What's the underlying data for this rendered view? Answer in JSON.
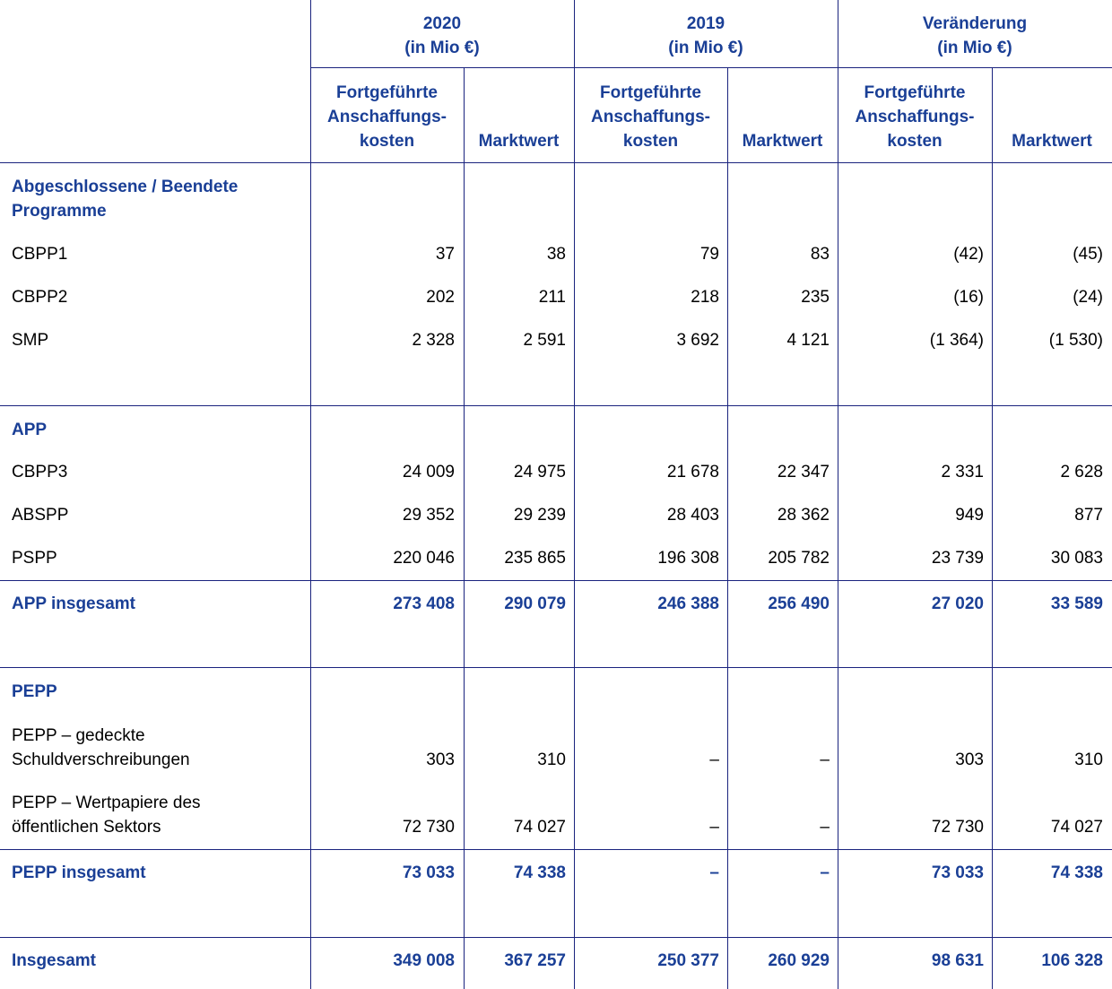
{
  "header": {
    "groups": [
      {
        "year": "2020",
        "unit": "(in Mio €)"
      },
      {
        "year": "2019",
        "unit": "(in Mio €)"
      },
      {
        "year": "Veränderung",
        "unit": "(in Mio €)"
      }
    ],
    "sub": {
      "cost_line1": "Fortgeführte",
      "cost_line2": "Anschaffungs-",
      "cost_line3": "kosten",
      "market": "Marktwert"
    }
  },
  "sections": {
    "closed": {
      "title_line1": "Abgeschlossene / Beendete",
      "title_line2": "Programme",
      "rows": [
        {
          "label": "CBPP1",
          "v": [
            "37",
            "38",
            "79",
            "83",
            "(42)",
            "(45)"
          ]
        },
        {
          "label": "CBPP2",
          "v": [
            "202",
            "211",
            "218",
            "235",
            "(16)",
            "(24)"
          ]
        },
        {
          "label": "SMP",
          "v": [
            "2 328",
            "2 591",
            "3 692",
            "4 121",
            "(1 364)",
            "(1 530)"
          ]
        }
      ]
    },
    "app": {
      "title": "APP",
      "rows": [
        {
          "label": "CBPP3",
          "v": [
            "24 009",
            "24 975",
            "21 678",
            "22 347",
            "2 331",
            "2 628"
          ]
        },
        {
          "label": "ABSPP",
          "v": [
            "29 352",
            "29 239",
            "28 403",
            "28 362",
            "949",
            "877"
          ]
        },
        {
          "label": "PSPP",
          "v": [
            "220 046",
            "235 865",
            "196 308",
            "205 782",
            "23 739",
            "30 083"
          ]
        }
      ],
      "total": {
        "label": "APP insgesamt",
        "v": [
          "273 408",
          "290 079",
          "246 388",
          "256 490",
          "27 020",
          "33 589"
        ]
      }
    },
    "pepp": {
      "title": "PEPP",
      "rows": [
        {
          "label_line1": "PEPP – gedeckte",
          "label_line2": "Schuldverschreibungen",
          "v": [
            "303",
            "310",
            "–",
            "–",
            "303",
            "310"
          ]
        },
        {
          "label_line1": "PEPP – Wertpapiere des",
          "label_line2": "öffentlichen Sektors",
          "v": [
            "72 730",
            "74 027",
            "–",
            "–",
            "72 730",
            "74 027"
          ]
        }
      ],
      "total": {
        "label": "PEPP insgesamt",
        "v": [
          "73 033",
          "74 338",
          "–",
          "–",
          "73 033",
          "74 338"
        ]
      }
    },
    "grand_total": {
      "label": "Insgesamt",
      "v": [
        "349 008",
        "367 257",
        "250 377",
        "260 929",
        "98 631",
        "106 328"
      ]
    }
  }
}
